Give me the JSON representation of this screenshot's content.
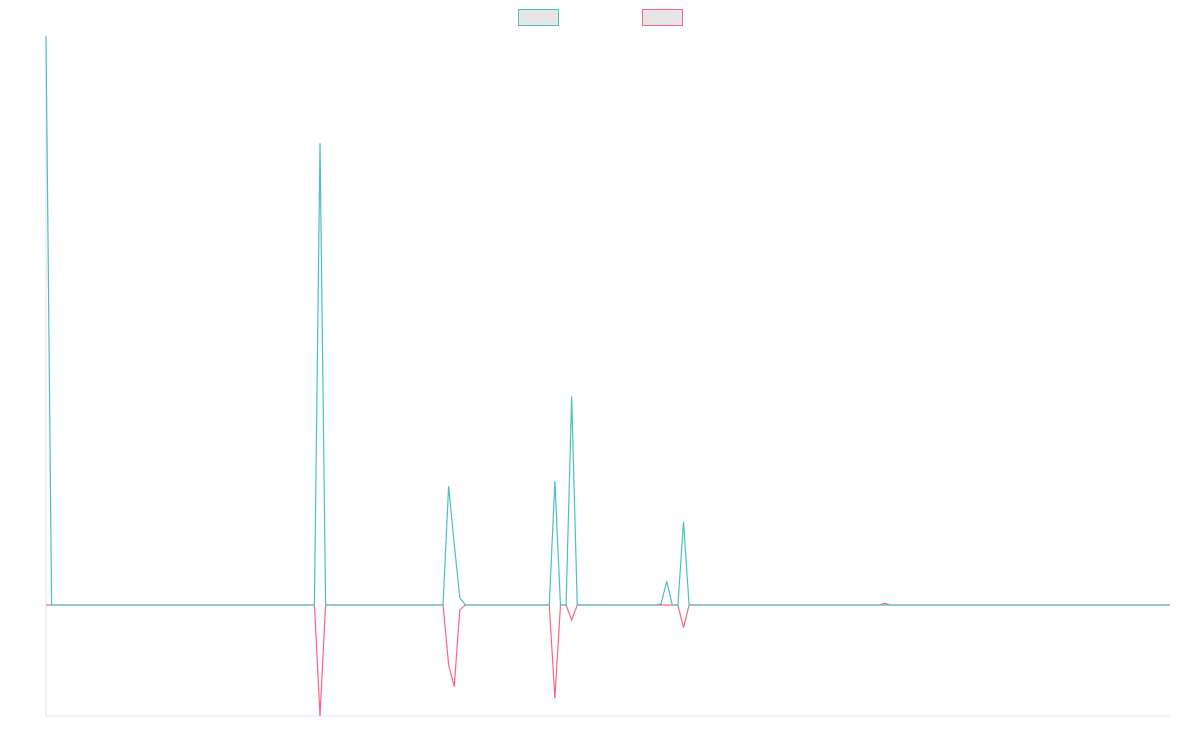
{
  "chart_data": {
    "type": "line",
    "x": [
      0,
      1,
      48,
      49,
      50,
      71,
      72,
      73,
      74,
      75,
      90,
      91,
      92,
      93,
      94,
      95,
      109,
      110,
      111,
      112,
      113,
      114,
      115,
      149,
      150,
      151,
      201
    ],
    "series": [
      {
        "color": "#ff6384",
        "values": [
          0,
          0,
          0,
          -20,
          0,
          0,
          -10.8,
          -14.7,
          -0.9,
          0,
          0,
          -16.8,
          0,
          0,
          -2.7,
          0,
          0,
          0,
          0,
          0,
          0,
          -4.1,
          0,
          0,
          0.3,
          0,
          0
        ]
      },
      {
        "color": "#4bc0c0",
        "values": [
          102.5,
          0,
          0,
          83.2,
          0,
          0,
          21.4,
          11,
          1.3,
          0,
          0,
          22.3,
          0,
          0,
          37.5,
          0,
          0,
          0.2,
          4.3,
          0,
          0,
          15,
          0,
          0,
          0,
          0,
          0
        ]
      }
    ],
    "xlim": [
      0,
      201
    ],
    "ylim": [
      -20,
      102.5
    ],
    "legend": "top"
  }
}
